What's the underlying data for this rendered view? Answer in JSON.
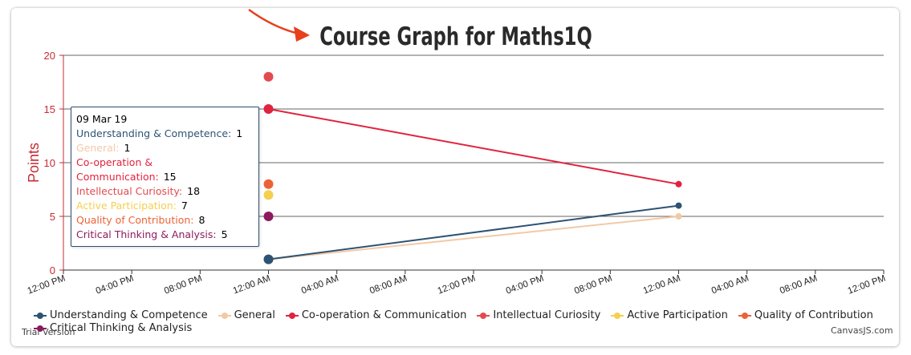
{
  "chart_data": {
    "type": "line",
    "title": "Course Graph for Maths1Q",
    "ylabel": "Points",
    "xlabel": "",
    "ylim": [
      0,
      20
    ],
    "yticks": [
      "0",
      "5",
      "10",
      "15",
      "20"
    ],
    "xticks": [
      "12:00 PM",
      "04:00 PM",
      "08:00 PM",
      "12:00 AM",
      "04:00 AM",
      "08:00 AM",
      "12:00 PM",
      "04:00 PM",
      "08:00 PM",
      "12:00 AM",
      "04:00 AM",
      "08:00 AM",
      "12:00 PM"
    ],
    "x": [
      "2019-03-09 00:00",
      "2019-03-10 00:00"
    ],
    "series": [
      {
        "name": "Understanding & Competence",
        "color": "#2e5273",
        "values": [
          1,
          6
        ]
      },
      {
        "name": "General",
        "color": "#f3c9a6",
        "values": [
          1,
          5
        ]
      },
      {
        "name": "Co-operation & Communication",
        "color": "#e0233f",
        "values": [
          15,
          8
        ]
      },
      {
        "name": "Intellectual Curiosity",
        "color": "#e34a4f",
        "values": [
          18,
          null
        ]
      },
      {
        "name": "Active Participation",
        "color": "#f5cf4f",
        "values": [
          7,
          null
        ]
      },
      {
        "name": "Quality of Contribution",
        "color": "#ec6238",
        "values": [
          8,
          null
        ]
      },
      {
        "name": "Critical Thinking & Analysis",
        "color": "#8c1b5e",
        "values": [
          5,
          null
        ]
      }
    ],
    "grid": true,
    "legend": "bottom",
    "tooltip": {
      "date": "09 Mar 19",
      "entries": [
        {
          "label": "Understanding & Competence:",
          "value": "1"
        },
        {
          "label": "General:",
          "value": "1"
        },
        {
          "label": "Co-operation & Communication:",
          "value": "15"
        },
        {
          "label": "Intellectual Curiosity:",
          "value": "18"
        },
        {
          "label": "Active Participation:",
          "value": "7"
        },
        {
          "label": "Quality of Contribution:",
          "value": "8"
        },
        {
          "label": "Critical Thinking & Analysis:",
          "value": "5"
        }
      ]
    }
  },
  "footer": {
    "trial": "Trial Version",
    "credit": "CanvasJS.com"
  }
}
